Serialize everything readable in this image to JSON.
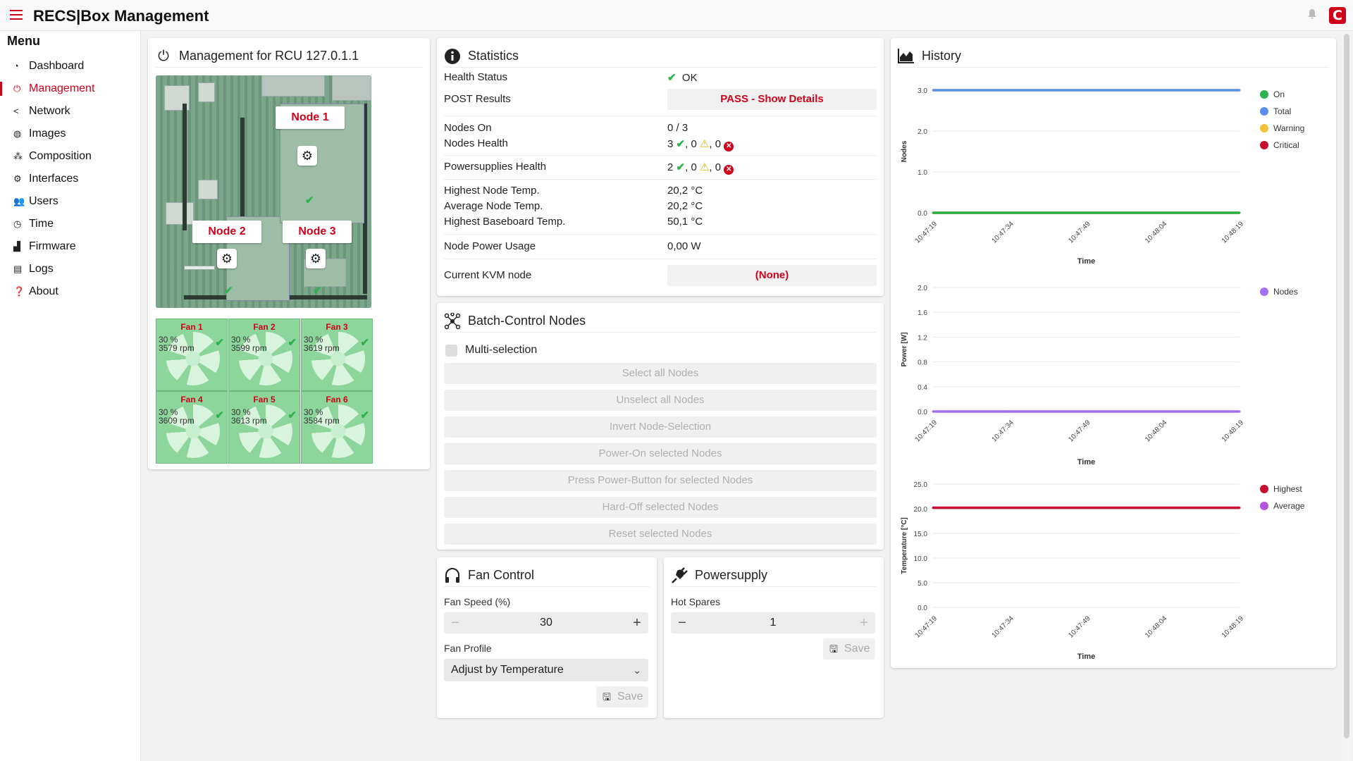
{
  "header": {
    "title": "RECS|Box Management"
  },
  "sidebar": {
    "title": "Menu",
    "items": [
      {
        "label": "Dashboard"
      },
      {
        "label": "Management"
      },
      {
        "label": "Network"
      },
      {
        "label": "Images"
      },
      {
        "label": "Composition"
      },
      {
        "label": "Interfaces"
      },
      {
        "label": "Users"
      },
      {
        "label": "Time"
      },
      {
        "label": "Firmware"
      },
      {
        "label": "Logs"
      },
      {
        "label": "About"
      }
    ],
    "active": "Management"
  },
  "management": {
    "title": "Management for RCU 127.0.1.1",
    "nodes": [
      {
        "label": "Node 1"
      },
      {
        "label": "Node 2"
      },
      {
        "label": "Node 3"
      }
    ],
    "fans": [
      {
        "name": "Fan 1",
        "percent": "30 %",
        "rpm": "3579 rpm"
      },
      {
        "name": "Fan 2",
        "percent": "30 %",
        "rpm": "3599 rpm"
      },
      {
        "name": "Fan 3",
        "percent": "30 %",
        "rpm": "3619 rpm"
      },
      {
        "name": "Fan 4",
        "percent": "30 %",
        "rpm": "3609 rpm"
      },
      {
        "name": "Fan 5",
        "percent": "30 %",
        "rpm": "3613 rpm"
      },
      {
        "name": "Fan 6",
        "percent": "30 %",
        "rpm": "3584 rpm"
      }
    ]
  },
  "statistics": {
    "title": "Statistics",
    "health_status_label": "Health Status",
    "health_status_value": "OK",
    "post_label": "POST Results",
    "post_button": "PASS - Show Details",
    "nodes_on_label": "Nodes On",
    "nodes_on_value": "0 / 3",
    "nodes_health_label": "Nodes Health",
    "nodes_health": {
      "ok": "3",
      "warning": "0",
      "critical": "0"
    },
    "psu_health_label": "Powersupplies Health",
    "psu_health": {
      "ok": "2",
      "warning": "0",
      "critical": "0"
    },
    "highest_node_temp_label": "Highest Node Temp.",
    "highest_node_temp_value": "20,2 °C",
    "avg_node_temp_label": "Average Node Temp.",
    "avg_node_temp_value": "20,2 °C",
    "highest_baseboard_label": "Highest Baseboard Temp.",
    "highest_baseboard_value": "50,1 °C",
    "power_usage_label": "Node Power Usage",
    "power_usage_value": "0,00 W",
    "kvm_label": "Current KVM node",
    "kvm_button": "(None)"
  },
  "batch": {
    "title": "Batch-Control Nodes",
    "multi_selection": "Multi-selection",
    "buttons": [
      {
        "label": "Select all Nodes"
      },
      {
        "label": "Unselect all Nodes"
      },
      {
        "label": "Invert Node-Selection"
      },
      {
        "label": "Power-On selected Nodes"
      },
      {
        "label": "Press Power-Button for selected Nodes"
      },
      {
        "label": "Hard-Off selected Nodes"
      },
      {
        "label": "Reset selected Nodes"
      }
    ]
  },
  "fan_control": {
    "title": "Fan Control",
    "speed_label": "Fan Speed (%)",
    "speed_value": "30",
    "profile_label": "Fan Profile",
    "profile_value": "Adjust by Temperature",
    "save": "Save"
  },
  "powersupply": {
    "title": "Powersupply",
    "hot_spares_label": "Hot Spares",
    "hot_spares_value": "1",
    "save": "Save"
  },
  "history": {
    "title": "History",
    "time_ticks": [
      "10:47:19",
      "10:47:34",
      "10:47:49",
      "10:48:04",
      "10:48:19"
    ],
    "xlabel": "Time"
  },
  "chart_data": [
    {
      "type": "line",
      "ylabel": "Nodes",
      "xlabel": "Time",
      "x": [
        "10:47:19",
        "10:47:34",
        "10:47:49",
        "10:48:04",
        "10:48:19"
      ],
      "ylim": [
        0,
        3
      ],
      "yticks": [
        "0.0",
        "1.0",
        "2.0",
        "3.0"
      ],
      "legend_position": "right",
      "series": [
        {
          "name": "On",
          "color": "#2bb24c",
          "values": [
            0,
            0,
            0,
            0,
            0
          ]
        },
        {
          "name": "Total",
          "color": "#5b8dee",
          "values": [
            3,
            3,
            3,
            3,
            3
          ]
        },
        {
          "name": "Warning",
          "color": "#f2c23a",
          "values": [
            0,
            0,
            0,
            0,
            0
          ]
        },
        {
          "name": "Critical",
          "color": "#c8102e",
          "values": [
            0,
            0,
            0,
            0,
            0
          ]
        }
      ]
    },
    {
      "type": "line",
      "ylabel": "Power [W]",
      "xlabel": "Time",
      "x": [
        "10:47:19",
        "10:47:34",
        "10:47:49",
        "10:48:04",
        "10:48:19"
      ],
      "ylim": [
        0,
        2
      ],
      "yticks": [
        "0.0",
        "0.4",
        "0.8",
        "1.2",
        "1.6",
        "2.0"
      ],
      "legend_position": "right",
      "series": [
        {
          "name": "Nodes",
          "color": "#a36ef0",
          "values": [
            0,
            0,
            0,
            0,
            0
          ]
        }
      ]
    },
    {
      "type": "line",
      "ylabel": "Temperature [°C]",
      "xlabel": "Time",
      "x": [
        "10:47:19",
        "10:47:34",
        "10:47:49",
        "10:48:04",
        "10:48:19"
      ],
      "ylim": [
        0,
        25
      ],
      "yticks": [
        "0.0",
        "5.0",
        "10.0",
        "15.0",
        "20.0",
        "25.0"
      ],
      "legend_position": "right",
      "series": [
        {
          "name": "Highest",
          "color": "#c8102e",
          "values": [
            20.2,
            20.2,
            20.2,
            20.2,
            20.2
          ]
        },
        {
          "name": "Average",
          "color": "#b455e0",
          "values": [
            20.2,
            20.2,
            20.2,
            20.2,
            20.2
          ]
        }
      ]
    }
  ]
}
